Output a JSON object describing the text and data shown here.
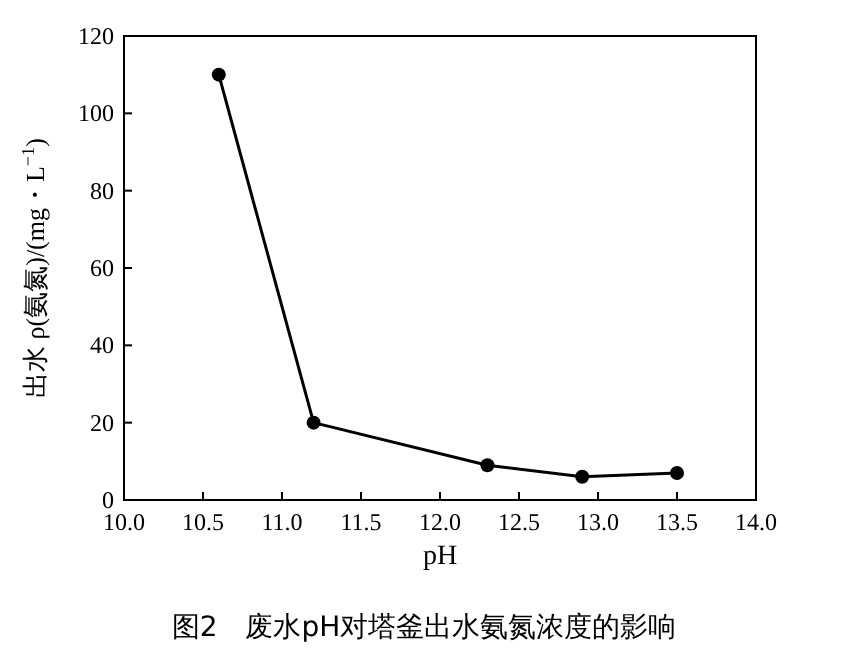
{
  "chart_data": {
    "type": "line",
    "xlabel": "pH",
    "ylabel": "出水 ρ(氨氮)/(mg・L$^{−1}$)",
    "annotations": [
      "图2　废水pH对塔釜出水氨氮浓度的影响"
    ],
    "x": [
      10.6,
      11.2,
      12.3,
      12.9,
      13.5
    ],
    "values": [
      110,
      20,
      9,
      6,
      7
    ],
    "color": "#000000",
    "marker": "circle",
    "line_style": "solid",
    "xlim": [
      10,
      14
    ],
    "xticks": [
      {
        "value": 10,
        "label": "10.0"
      },
      {
        "value": 10.5,
        "label": "10.5"
      },
      {
        "value": 11,
        "label": "11.0"
      },
      {
        "value": 11.5,
        "label": "11.5"
      },
      {
        "value": 12,
        "label": "12.0"
      },
      {
        "value": 12.5,
        "label": "12.5"
      },
      {
        "value": 13,
        "label": "13.0"
      },
      {
        "value": 13.5,
        "label": "13.5"
      },
      {
        "value": 14,
        "label": "14.0"
      }
    ],
    "ylim": [
      0,
      120
    ],
    "yticks": [
      0,
      20,
      40,
      60,
      80,
      100,
      120
    ]
  }
}
